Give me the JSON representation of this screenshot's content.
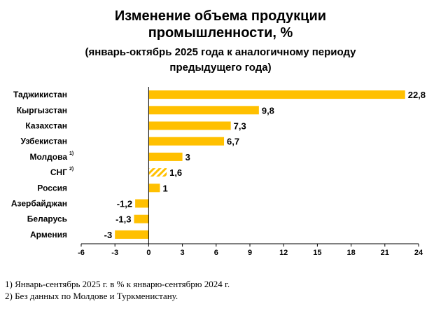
{
  "title": {
    "line1": "Изменение объема продукции",
    "line2": "промышленности, %",
    "line3": "(январь-октябрь 2025 года к аналогичному периоду",
    "line4": "предыдущего года)"
  },
  "chart_data": {
    "type": "bar",
    "orientation": "horizontal",
    "categories": [
      "Таджикистан",
      "Кыргызстан",
      "Казахстан",
      "Узбекистан",
      "Молдова",
      "СНГ",
      "Россия",
      "Азербайджан",
      "Беларусь",
      "Армения"
    ],
    "category_superscripts": [
      "",
      "",
      "",
      "",
      "1)",
      "2)",
      "",
      "",
      "",
      ""
    ],
    "values": [
      22.8,
      9.8,
      7.3,
      6.7,
      3,
      1.6,
      1,
      -1.2,
      -1.3,
      -3
    ],
    "value_labels": [
      "22,8",
      "9,8",
      "7,3",
      "6,7",
      "3",
      "1,6",
      "1",
      "-1,2",
      "-1,3",
      "-3"
    ],
    "hatched": [
      false,
      false,
      false,
      false,
      false,
      true,
      false,
      false,
      false,
      false
    ],
    "xlim": [
      -6,
      24
    ],
    "xticks": [
      -6,
      -3,
      0,
      3,
      6,
      9,
      12,
      15,
      18,
      21,
      24
    ],
    "bar_color": "#FFC000",
    "grid": false
  },
  "footnotes": [
    "1) Январь-сентябрь 2025 г. в % к январю-сентябрю 2024 г.",
    "2) Без данных по Молдове и Туркменистану."
  ]
}
